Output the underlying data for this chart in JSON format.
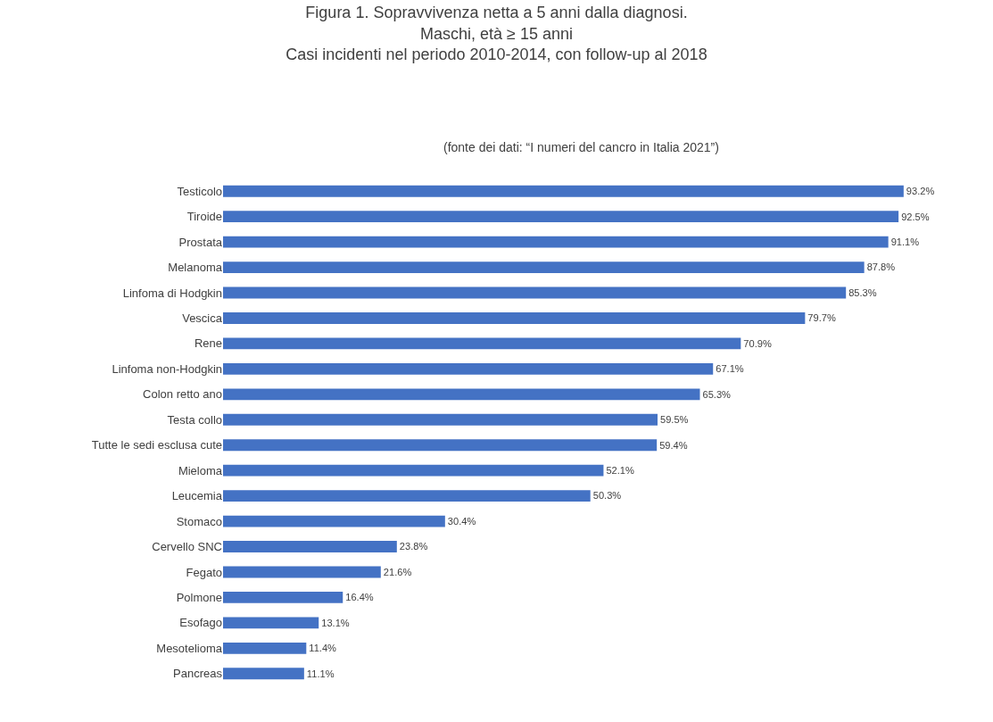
{
  "chart_data": {
    "type": "bar",
    "orientation": "horizontal",
    "title": "Figura 1. Sopravvivenza netta a 5 anni dalla diagnosi.\nMaschi, età ≥ 15 anni\nCasi incidenti nel periodo 2010-2014, con follow-up al 2018",
    "subtitle": "(fonte dei dati: “I numeri del cancro in Italia 2021”)",
    "categories": [
      "Testicolo",
      "Tiroide",
      "Prostata",
      "Melanoma",
      "Linfoma di Hodgkin",
      "Vescica",
      "Rene",
      "Linfoma non-Hodgkin",
      "Colon retto ano",
      "Testa collo",
      "Tutte le sedi esclusa cute",
      "Mieloma",
      "Leucemia",
      "Stomaco",
      "Cervello SNC",
      "Fegato",
      "Polmone",
      "Esofago",
      "Mesotelioma",
      "Pancreas"
    ],
    "values": [
      93.2,
      92.5,
      91.1,
      87.8,
      85.3,
      79.7,
      70.9,
      67.1,
      65.3,
      59.5,
      59.4,
      52.1,
      50.3,
      30.4,
      23.8,
      21.6,
      16.4,
      13.1,
      11.4,
      11.1
    ],
    "value_labels": [
      "93.2%",
      "92.5%",
      "91.1%",
      "87.8%",
      "85.3%",
      "79.7%",
      "70.9%",
      "67.1%",
      "65.3%",
      "59.5%",
      "59.4%",
      "52.1%",
      "50.3%",
      "30.4%",
      "23.8%",
      "21.6%",
      "16.4%",
      "13.1%",
      "11.4%",
      "11.1%"
    ],
    "color": "#4472c4",
    "grid": false,
    "legend": false
  }
}
